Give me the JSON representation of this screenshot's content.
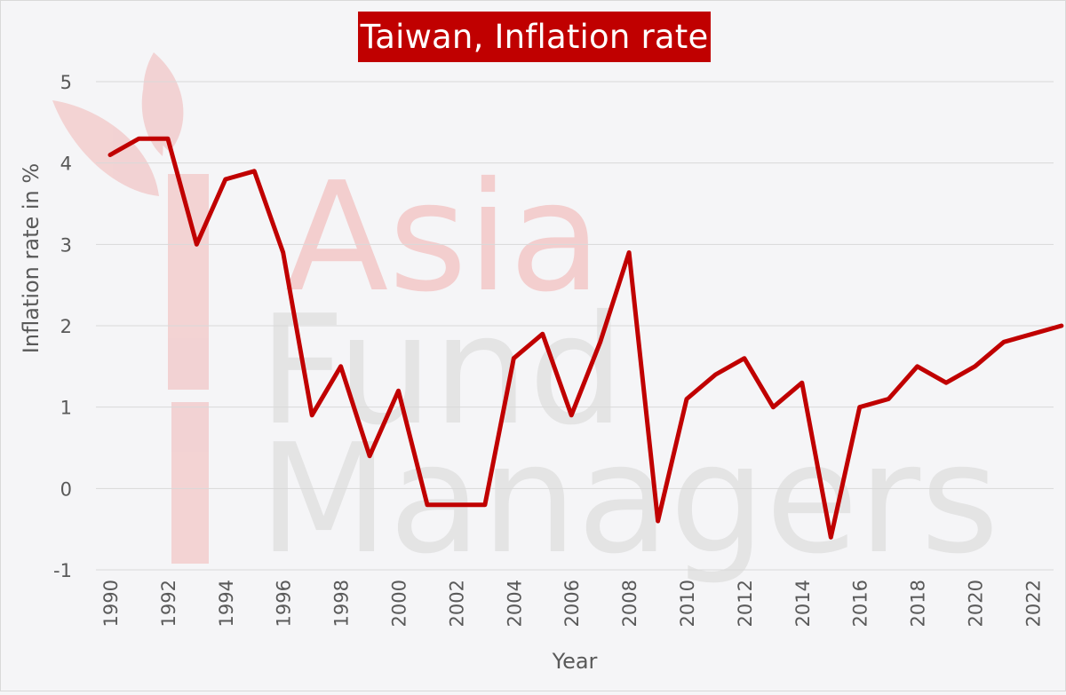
{
  "chart_data": {
    "type": "line",
    "title": "Taiwan, Inflation rate",
    "xlabel": "Year",
    "ylabel": "Inflation rate in %",
    "ylim": [
      -1,
      5
    ],
    "yticks": [
      -1,
      0,
      1,
      2,
      3,
      4,
      5
    ],
    "xlim": [
      1990,
      2023
    ],
    "xtick_labels": [
      "1990",
      "1992",
      "1994",
      "1996",
      "1998",
      "2000",
      "2002",
      "2004",
      "2006",
      "2008",
      "2010",
      "2012",
      "2014",
      "2016",
      "2018",
      "2020",
      "2022"
    ],
    "grid": true,
    "line_color": "#c00000",
    "series": [
      {
        "x": [
          1990,
          1991,
          1992,
          1993,
          1994,
          1995,
          1996,
          1997,
          1998,
          1999,
          2000,
          2001,
          2002,
          2003,
          2004,
          2005,
          2006,
          2007,
          2008,
          2009,
          2010,
          2011,
          2012,
          2013,
          2014,
          2015,
          2016,
          2017,
          2018,
          2019,
          2020,
          2021,
          2022,
          2023
        ],
        "values": [
          4.1,
          4.3,
          4.3,
          3.0,
          3.8,
          3.9,
          2.9,
          0.9,
          1.5,
          0.4,
          1.2,
          -0.2,
          -0.2,
          -0.2,
          1.6,
          1.9,
          0.9,
          1.8,
          2.9,
          -0.4,
          1.1,
          1.4,
          1.6,
          1.0,
          1.3,
          -0.6,
          1.0,
          1.1,
          1.5,
          1.3,
          1.5,
          1.8,
          1.9,
          2.0
        ]
      }
    ]
  },
  "watermark": {
    "line1": "Asia",
    "line2": "Fund",
    "line3": "Managers"
  },
  "colors": {
    "title_bg": "#c00000",
    "title_text": "#ffffff",
    "background": "#f5f5f7",
    "grid": "#d9d9d9",
    "tick_text": "#595959"
  }
}
